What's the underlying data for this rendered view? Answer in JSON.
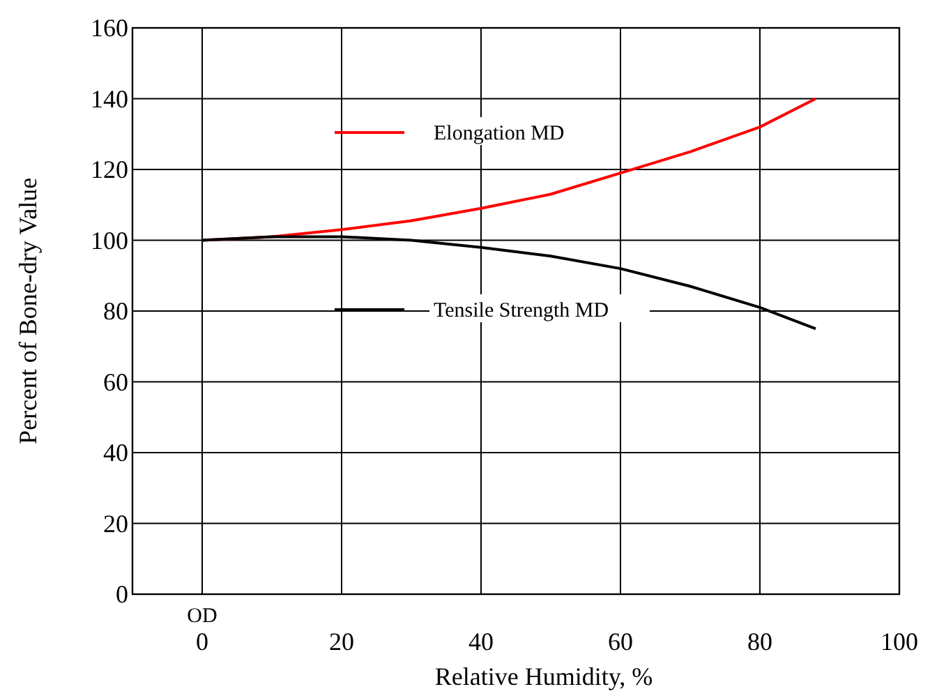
{
  "chart_data": {
    "type": "line",
    "xlabel": "Relative Humidity, %",
    "ylabel": "Percent of Bone-dry Value",
    "x": [
      0,
      10,
      20,
      30,
      40,
      50,
      60,
      70,
      80,
      88
    ],
    "series": [
      {
        "name": "Elongation MD",
        "color": "#ff0000",
        "values": [
          100,
          101,
          103,
          105.5,
          109,
          113,
          119,
          125,
          132,
          140
        ]
      },
      {
        "name": "Tensile Strength MD",
        "color": "#000000",
        "values": [
          100,
          101,
          101,
          100,
          98,
          95.5,
          92,
          87,
          81,
          75
        ]
      }
    ],
    "xlim": [
      -10,
      100
    ],
    "xticks": [
      0,
      20,
      40,
      60,
      80,
      100
    ],
    "ylim": [
      0,
      160
    ],
    "yticks": [
      0,
      20,
      40,
      60,
      80,
      100,
      120,
      140,
      160
    ],
    "grid": true,
    "legend": "top left",
    "marker": "none",
    "line_style": "solid",
    "annotations": [
      "OD"
    ]
  }
}
